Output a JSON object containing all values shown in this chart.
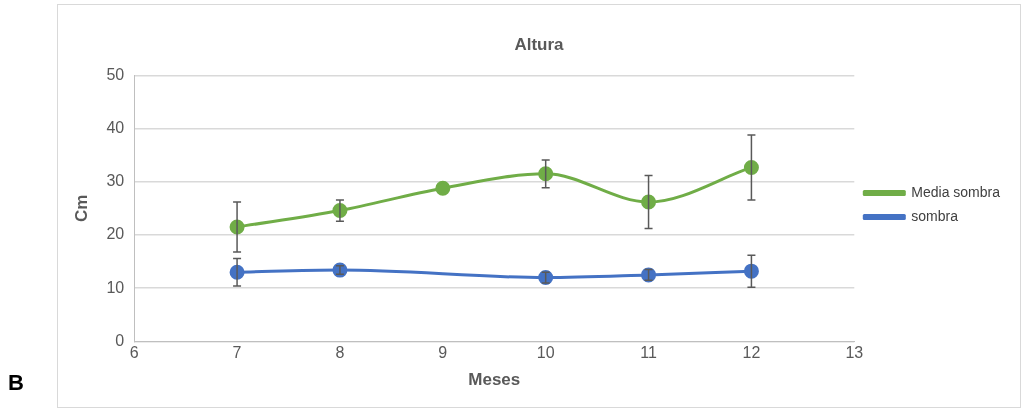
{
  "chart_data": {
    "type": "line",
    "title": "Altura",
    "xlabel": "Meses",
    "ylabel": "Cm",
    "annotations": [
      "B"
    ],
    "xlim": [
      6,
      13
    ],
    "xticks": [
      6,
      7,
      8,
      9,
      10,
      11,
      12,
      13
    ],
    "ylim": [
      0,
      50
    ],
    "yticks": [
      0,
      10,
      20,
      30,
      40,
      50
    ],
    "grid": "y",
    "legend": "right",
    "marker": "circle",
    "line_style": "solid",
    "series": [
      {
        "name": "Media sombra",
        "color": "#70ad47",
        "x": [
          7,
          8,
          9,
          10,
          11,
          12
        ],
        "values": [
          21.5,
          24.6,
          28.8,
          31.5,
          26.2,
          32.7
        ],
        "errors": [
          4.7,
          2,
          null,
          2.6,
          5,
          6.1
        ]
      },
      {
        "name": "sombra",
        "color": "#4472c4",
        "x": [
          7,
          8,
          10,
          11,
          12
        ],
        "values": [
          13,
          13.4,
          12,
          12.5,
          13.2
        ],
        "errors": [
          2.6,
          0.8,
          1,
          1,
          3
        ]
      }
    ]
  }
}
